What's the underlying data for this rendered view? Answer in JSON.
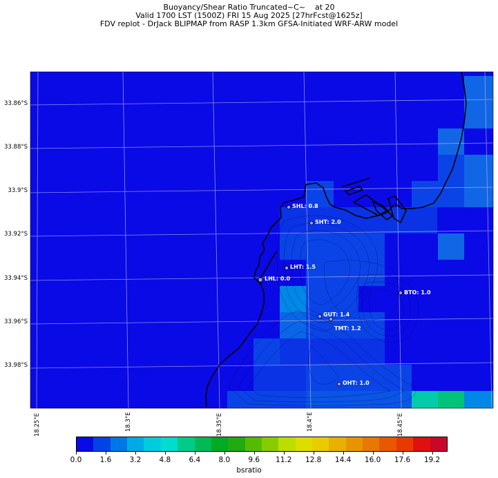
{
  "title": {
    "line1": "Buoyancy/Shear Ratio Truncated~C~    at 20",
    "line2": "Valid 1700 LST (1500Z) FRI 15 Aug 2025 [27hrFcst@1625z]",
    "line3": "FDV replot - DrJack BLIPMAP from RASP 1.3km GFSA-Initiated WRF-ARW model"
  },
  "map": {
    "lon_range": [
      18.246,
      18.499
    ],
    "lat_range": [
      -33.855,
      -34.0
    ],
    "y_ticks": [
      "33.86°S",
      "33.88°S",
      "33.9°S",
      "33.92°S",
      "33.94°S",
      "33.96°S",
      "33.98°S"
    ],
    "x_ticks": [
      "18.25°E",
      "18.3°E",
      "18.35°E",
      "18.4°E",
      "18.45°E"
    ],
    "base_value": 0.0,
    "colors": {
      "sea_base": "#0a0ae6",
      "coast": "#000000",
      "grid": "#b8b8e8",
      "contour": "#000060",
      "label_text": "#ffffff"
    },
    "stations": [
      {
        "label": "SHL: 0.8",
        "name": "SHL",
        "value": 0.8
      },
      {
        "label": "SHT: 2.0",
        "name": "SHT",
        "value": 2.0
      },
      {
        "label": "LHT: 1.5",
        "name": "LHT",
        "value": 1.5
      },
      {
        "label": "LHL: 0.0",
        "name": "LHL",
        "value": 0.0
      },
      {
        "label": "BTO: 1.0",
        "name": "BTO",
        "value": 1.0
      },
      {
        "label": "GUT: 1.4",
        "name": "GUT",
        "value": 1.4
      },
      {
        "label": "TMT: 1.2",
        "name": "TMT",
        "value": 1.2
      },
      {
        "label": "OHT: 1.0",
        "name": "OHT",
        "value": 1.0
      }
    ]
  },
  "colorbar": {
    "label": "bsratio",
    "min": 0.0,
    "max": 20.0,
    "ticks": [
      "0.0",
      "1.6",
      "3.2",
      "4.8",
      "6.4",
      "8.0",
      "9.6",
      "11.2",
      "12.8",
      "14.4",
      "16.0",
      "17.6",
      "19.2"
    ],
    "colors": [
      "#0a0ae6",
      "#0044e6",
      "#0077e6",
      "#00aae6",
      "#00ccdd",
      "#00ddcc",
      "#00cc88",
      "#00bb55",
      "#00aa22",
      "#22aa11",
      "#55bb00",
      "#88cc00",
      "#bbdd00",
      "#dddd00",
      "#e8cc00",
      "#e8b000",
      "#e89400",
      "#e87800",
      "#e85800",
      "#e83a00",
      "#e01010",
      "#c8082a"
    ]
  }
}
